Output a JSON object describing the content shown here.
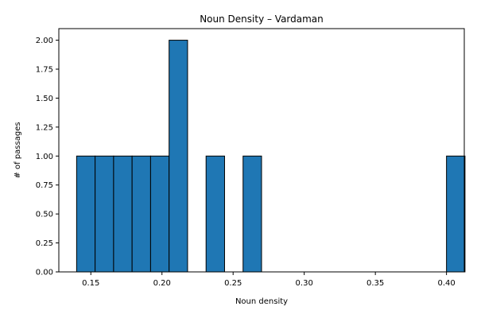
{
  "chart_data": {
    "type": "bar",
    "subtype": "histogram",
    "title": "Noun Density – Vardaman",
    "xlabel": "Noun density",
    "ylabel": "# of passages",
    "xlim": [
      0.1275,
      0.4125
    ],
    "ylim": [
      0,
      2.1
    ],
    "x_ticks": [
      0.15,
      0.2,
      0.25,
      0.3,
      0.35,
      0.4
    ],
    "x_tick_labels": [
      "0.15",
      "0.20",
      "0.25",
      "0.30",
      "0.35",
      "0.40"
    ],
    "y_ticks": [
      0,
      0.25,
      0.5,
      0.75,
      1.0,
      1.25,
      1.5,
      1.75,
      2.0
    ],
    "y_tick_labels": [
      "0.00",
      "0.25",
      "0.50",
      "0.75",
      "1.00",
      "1.25",
      "1.50",
      "1.75",
      "2.00"
    ],
    "bin_start": 0.14,
    "bin_width": 0.013,
    "values": [
      1,
      1,
      1,
      1,
      1,
      2,
      0,
      1,
      0,
      1,
      0,
      0,
      0,
      0,
      0,
      0,
      0,
      0,
      0,
      0,
      1
    ],
    "bar_color": "#1f77b4",
    "edge_color": "#000000",
    "grid": false,
    "legend": false
  }
}
